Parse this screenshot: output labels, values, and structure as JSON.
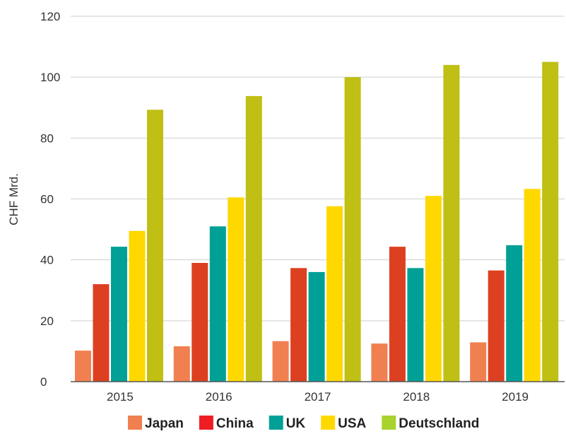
{
  "chart_data": {
    "type": "bar",
    "title": "",
    "xlabel": "",
    "ylabel": "CHF Mrd.",
    "ylim": [
      0,
      120
    ],
    "yticks": [
      0,
      20,
      40,
      60,
      80,
      100,
      120
    ],
    "grid": true,
    "legend_position": "bottom",
    "categories": [
      "2015",
      "2016",
      "2017",
      "2018",
      "2019"
    ],
    "series": [
      {
        "name": "Japan",
        "color": "#f08050",
        "values": [
          10.2,
          11.6,
          13.3,
          12.5,
          12.9
        ]
      },
      {
        "name": "China",
        "color": "#dc4020",
        "values": [
          32.0,
          39.0,
          37.3,
          44.3,
          36.5
        ]
      },
      {
        "name": "UK",
        "color": "#00a096",
        "values": [
          44.3,
          51.0,
          36.0,
          37.3,
          44.8
        ]
      },
      {
        "name": "USA",
        "color": "#ffd800",
        "values": [
          49.5,
          60.5,
          57.6,
          61.0,
          63.3
        ]
      },
      {
        "name": "Deutschland",
        "color": "#bfbf14",
        "values": [
          89.3,
          93.8,
          100.0,
          104.0,
          105.0
        ]
      }
    ],
    "legend_swatch_colors": [
      "#f08050",
      "#ee1d23",
      "#00a096",
      "#ffd800",
      "#a8d22e"
    ]
  }
}
